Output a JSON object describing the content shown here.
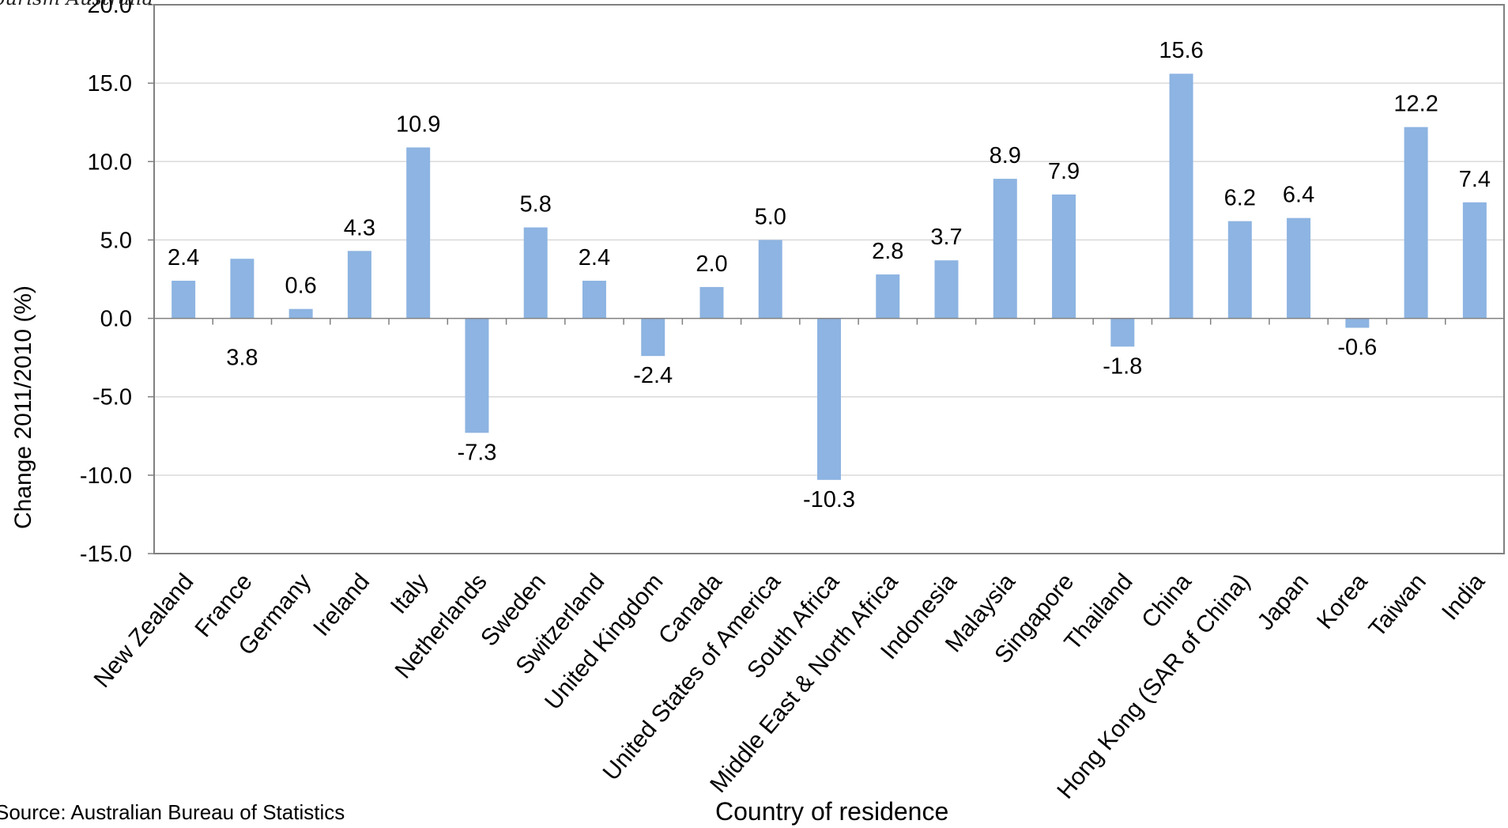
{
  "watermark": "ourism Australia",
  "source": "Source: Australian Bureau of Statistics",
  "chart_data": {
    "type": "bar",
    "title": "",
    "xlabel": "Country of residence",
    "ylabel": "Change 2011/2010 (%)",
    "ylim": [
      -15,
      20
    ],
    "yticks": [
      "-15.0",
      "-10.0",
      "-5.0",
      "0.0",
      "5.0",
      "10.0",
      "15.0",
      "20.0"
    ],
    "grid": true,
    "bar_color": "#8db4e2",
    "categories": [
      "New Zealand",
      "France",
      "Germany",
      "Ireland",
      "Italy",
      "Netherlands",
      "Sweden",
      "Switzerland",
      "United Kingdom",
      "Canada",
      "United States of America",
      "South Africa",
      "Middle East & North Africa",
      "Indonesia",
      "Malaysia",
      "Singapore",
      "Thailand",
      "China",
      "Hong Kong (SAR of China)",
      "Japan",
      "Korea",
      "Taiwan",
      "India"
    ],
    "values": [
      2.4,
      3.8,
      0.6,
      4.3,
      10.9,
      -7.3,
      5.8,
      2.4,
      -2.4,
      2.0,
      5.0,
      -10.3,
      2.8,
      3.7,
      8.9,
      7.9,
      -1.8,
      15.6,
      6.2,
      6.4,
      -0.6,
      12.2,
      7.4
    ],
    "labels": [
      "2.4",
      "3.8",
      "0.6",
      "4.3",
      "10.9",
      "-7.3",
      "5.8",
      "2.4",
      "-2.4",
      "2.0",
      "5.0",
      "-10.3",
      "2.8",
      "3.7",
      "8.9",
      "7.9",
      "-1.8",
      "15.6",
      "6.2",
      "6.4",
      "-0.6",
      "12.2",
      "7.4"
    ]
  }
}
